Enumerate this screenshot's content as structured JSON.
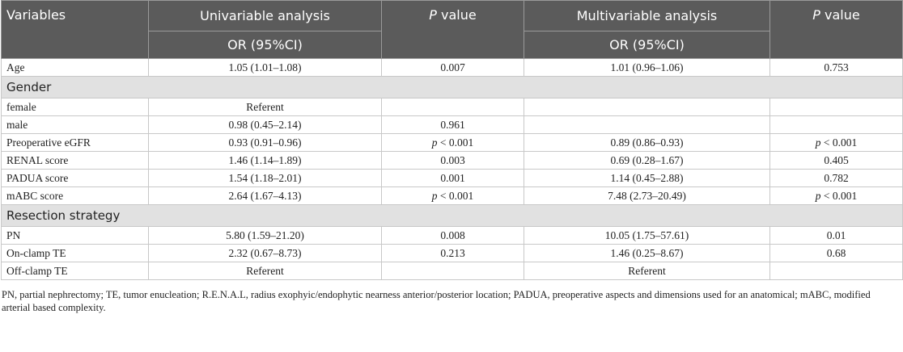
{
  "header": {
    "variables": "Variables",
    "univariable": "Univariable analysis",
    "or_uni": "OR (95%CI)",
    "p_uni": "P value",
    "multivariable": "Multivariable analysis",
    "or_multi": "OR (95%CI)",
    "p_multi": "P value"
  },
  "rows": [
    {
      "cells": [
        "Age",
        "1.05 (1.01–1.08)",
        "0.007",
        "1.01 (0.96–1.06)",
        "0.753"
      ]
    },
    {
      "section": "Gender"
    },
    {
      "cells": [
        "female",
        "Referent",
        null,
        null,
        null
      ]
    },
    {
      "cells": [
        "male",
        "0.98 (0.45–2.14)",
        "0.961",
        null,
        null
      ]
    },
    {
      "cells": [
        "Preoperative eGFR",
        "0.93 (0.91–0.96)",
        "p < 0.001",
        "0.89 (0.86–0.93)",
        "p < 0.001"
      ]
    },
    {
      "cells": [
        "RENAL score",
        "1.46 (1.14–1.89)",
        "0.003",
        "0.69 (0.28–1.67)",
        "0.405"
      ]
    },
    {
      "cells": [
        "PADUA score",
        "1.54 (1.18–2.01)",
        "0.001",
        "1.14 (0.45–2.88)",
        "0.782"
      ]
    },
    {
      "cells": [
        "mABC score",
        "2.64 (1.67–4.13)",
        "p < 0.001",
        "7.48 (2.73–20.49)",
        "p < 0.001"
      ]
    },
    {
      "section": "Resection strategy"
    },
    {
      "cells": [
        "PN",
        "5.80 (1.59–21.20)",
        "0.008",
        "10.05 (1.75–57.61)",
        "0.01"
      ]
    },
    {
      "cells": [
        "On-clamp TE",
        "2.32 (0.67–8.73)",
        "0.213",
        "1.46 (0.25–8.67)",
        "0.68"
      ]
    },
    {
      "cells": [
        "Off-clamp TE",
        "Referent",
        null,
        "Referent",
        null
      ]
    }
  ],
  "footnote": "PN, partial nephrectomy; TE, tumor enucleation; R.E.N.A.L, radius exophyic/endophytic nearness anterior/posterior location; PADUA, preoperative aspects and dimensions used for an anatomical; mABC, modified arterial based complexity."
}
